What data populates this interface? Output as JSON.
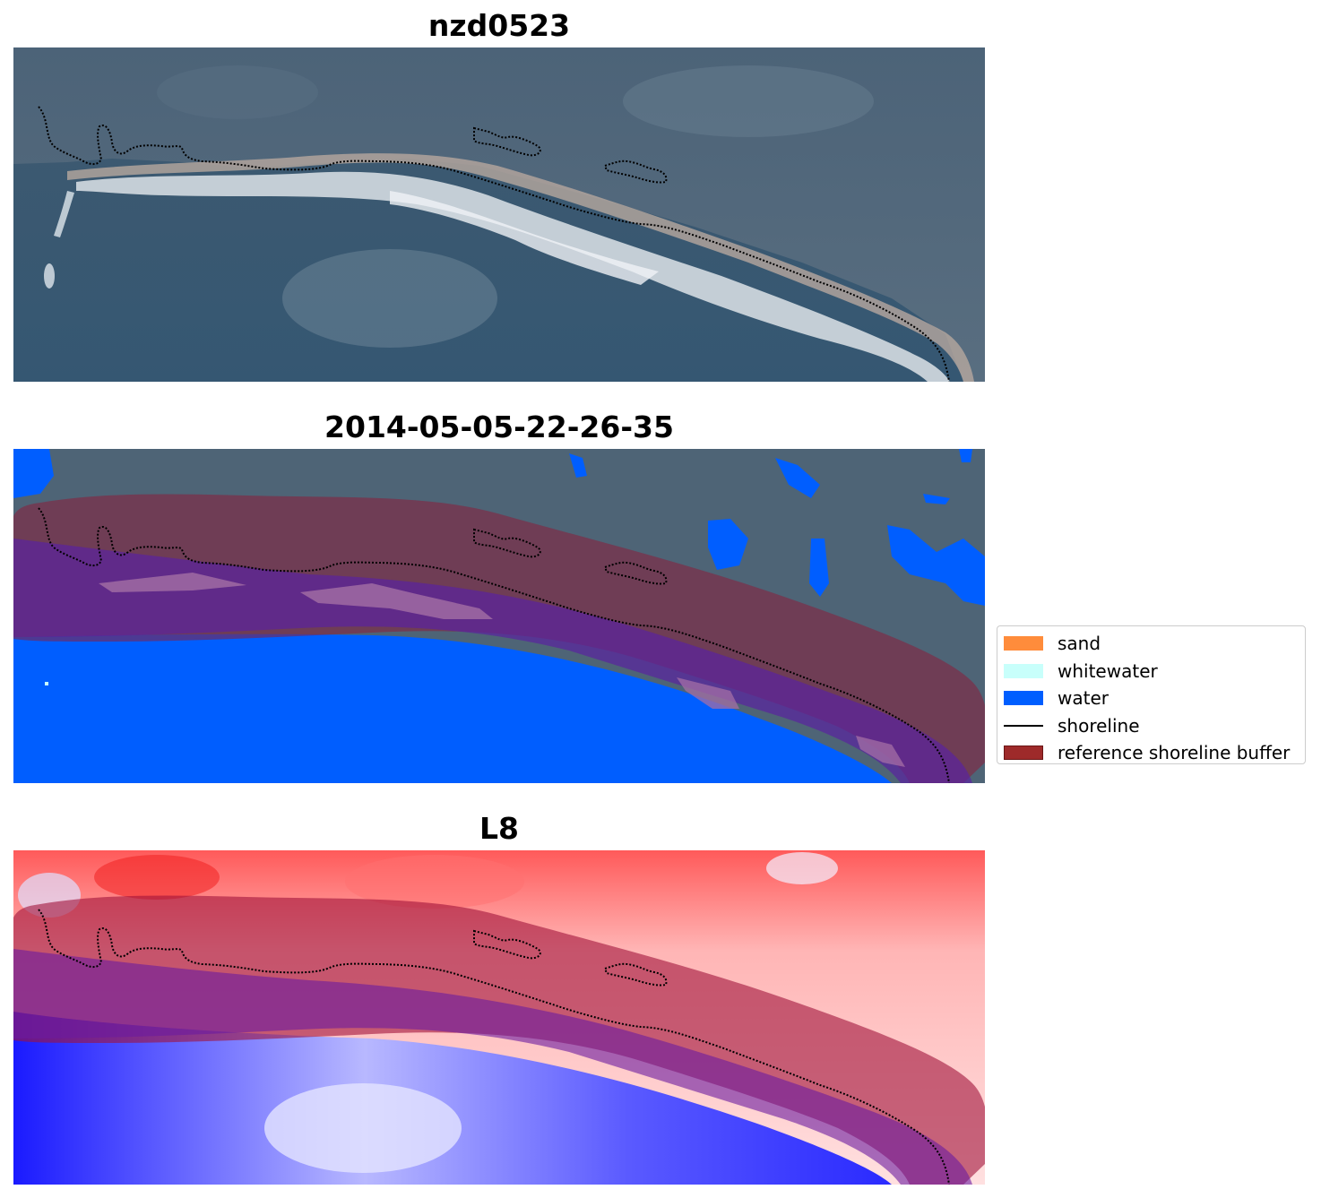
{
  "panels": [
    {
      "title": "nzd0523"
    },
    {
      "title": "2014-05-05-22-26-35"
    },
    {
      "title": "L8"
    }
  ],
  "legend": {
    "items": [
      {
        "label": "sand",
        "color": "#ff8c3b",
        "kind": "patch"
      },
      {
        "label": "whitewater",
        "color": "#c8fffb",
        "kind": "patch"
      },
      {
        "label": "water",
        "color": "#005eff",
        "kind": "patch"
      },
      {
        "label": "shoreline",
        "color": "#000000",
        "kind": "line"
      },
      {
        "label": "reference shoreline buffer",
        "color": "#9e2a2a",
        "kind": "patch"
      }
    ]
  }
}
